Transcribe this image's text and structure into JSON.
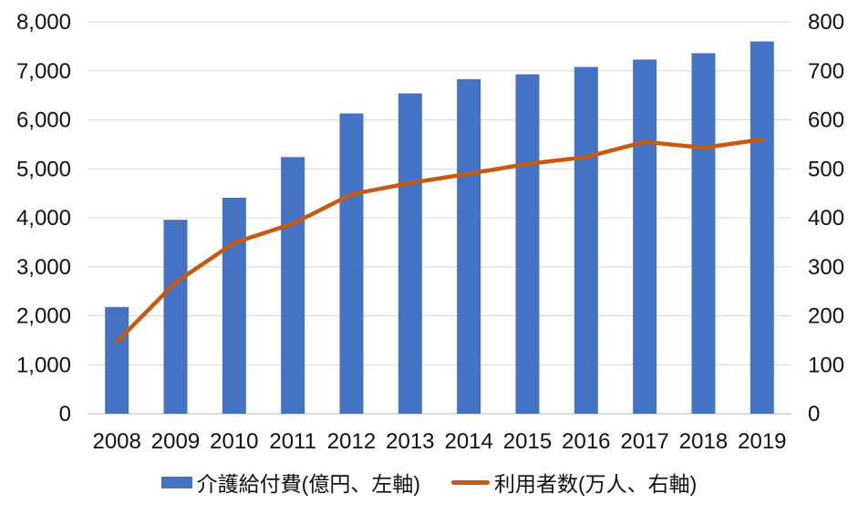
{
  "chart_data": {
    "type": "bar",
    "subtype": "combo-bar-line-dual-axis",
    "title": "",
    "categories": [
      "2008",
      "2009",
      "2010",
      "2011",
      "2012",
      "2013",
      "2014",
      "2015",
      "2016",
      "2017",
      "2018",
      "2019"
    ],
    "series": [
      {
        "name": "介護給付費(億円、左軸)",
        "type": "bar",
        "axis": "left",
        "color": "#4472C4",
        "values": [
          2180,
          3960,
          4410,
          5240,
          6130,
          6540,
          6830,
          6930,
          7080,
          7230,
          7360,
          7600
        ]
      },
      {
        "name": "利用者数(万人、右軸)",
        "type": "line",
        "axis": "right",
        "color": "#C55A11",
        "values": [
          147,
          268,
          349,
          388,
          448,
          471,
          490,
          510,
          524,
          555,
          543,
          560
        ]
      }
    ],
    "left_axis": {
      "min": 0,
      "max": 8000,
      "step": 1000,
      "tick_labels": [
        "0",
        "1,000",
        "2,000",
        "3,000",
        "4,000",
        "5,000",
        "6,000",
        "7,000",
        "8,000"
      ]
    },
    "right_axis": {
      "min": 0,
      "max": 800,
      "step": 100,
      "tick_labels": [
        "0",
        "100",
        "200",
        "300",
        "400",
        "500",
        "600",
        "700",
        "800"
      ]
    },
    "grid": true,
    "gridline_color": "#D9D9D9",
    "axis_line_color": "#D0D0D0",
    "legend_position": "bottom"
  },
  "legend": {
    "items": [
      {
        "label": "介護給付費(億円、左軸)",
        "swatch": "bar",
        "color": "#4472C4"
      },
      {
        "label": "利用者数(万人、右軸)",
        "swatch": "line",
        "color": "#C55A11"
      }
    ]
  }
}
